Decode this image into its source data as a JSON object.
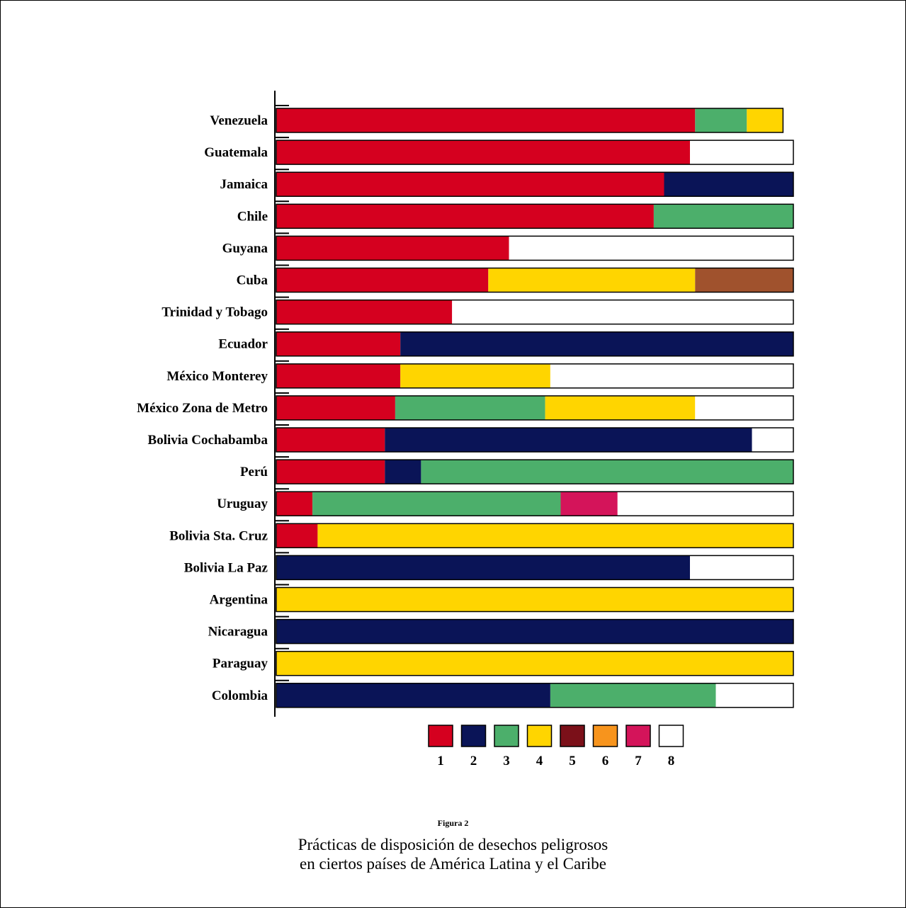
{
  "chart_data": {
    "type": "bar",
    "orientation": "horizontal",
    "stacked": true,
    "title": "",
    "xlabel": "",
    "ylabel": "",
    "xlim": [
      0,
      100
    ],
    "categories": [
      "Venezuela",
      "Guatemala",
      "Jamaica",
      "Chile",
      "Guyana",
      "Cuba",
      "Trinidad y Tobago",
      "Ecuador",
      "México Monterey",
      "México Zona de Metro",
      "Bolivia Cochabamba",
      "Perú",
      "Uruguay",
      "Bolivia Sta. Cruz",
      "Bolivia La Paz",
      "Argentina",
      "Nicaragua",
      "Paraguay",
      "Colombia"
    ],
    "series": [
      {
        "name": "1",
        "color": "#d5001f",
        "values": [
          81,
          80,
          75,
          73,
          45,
          41,
          34,
          24,
          24,
          23,
          21,
          21,
          7,
          8,
          0,
          0,
          0,
          0,
          0
        ]
      },
      {
        "name": "2",
        "color": "#0a1457",
        "values": [
          0,
          0,
          25,
          0,
          0,
          0,
          0,
          76,
          0,
          0,
          71,
          7,
          0,
          0,
          80,
          0,
          100,
          0,
          53
        ]
      },
      {
        "name": "3",
        "color": "#4caf6b",
        "values": [
          10,
          0,
          0,
          27,
          0,
          0,
          0,
          0,
          0,
          29,
          0,
          72,
          48,
          0,
          0,
          0,
          0,
          0,
          32
        ]
      },
      {
        "name": "4",
        "color": "#ffd500",
        "values": [
          7,
          0,
          0,
          0,
          0,
          40,
          0,
          0,
          29,
          29,
          0,
          0,
          0,
          92,
          0,
          100,
          0,
          100,
          0
        ]
      },
      {
        "name": "5",
        "color": "#a0522d",
        "values": [
          0,
          0,
          0,
          0,
          0,
          19,
          0,
          0,
          0,
          0,
          0,
          0,
          0,
          0,
          0,
          0,
          0,
          0,
          0
        ]
      },
      {
        "name": "6",
        "color": "#f7941d",
        "values": [
          0,
          0,
          0,
          0,
          0,
          0,
          0,
          0,
          0,
          0,
          0,
          0,
          0,
          0,
          0,
          0,
          0,
          0,
          0
        ]
      },
      {
        "name": "7",
        "color": "#d4145a",
        "values": [
          0,
          0,
          0,
          0,
          0,
          0,
          0,
          0,
          0,
          0,
          0,
          0,
          11,
          0,
          0,
          0,
          0,
          0,
          0
        ]
      },
      {
        "name": "8",
        "color": "#ffffff",
        "values": [
          0,
          20,
          0,
          0,
          55,
          0,
          66,
          0,
          47,
          19,
          8,
          0,
          34,
          0,
          20,
          0,
          0,
          0,
          15
        ]
      }
    ],
    "legend": {
      "placement": "bottom",
      "labels": [
        "1",
        "2",
        "3",
        "4",
        "5",
        "6",
        "7",
        "8"
      ],
      "colors": [
        "#d5001f",
        "#0a1457",
        "#4caf6b",
        "#ffd500",
        "#7b1019",
        "#f7941d",
        "#d4145a",
        "#ffffff"
      ]
    }
  },
  "caption": {
    "figure_number": "Figura 2",
    "title_line1": "Prácticas de disposición de desechos peligrosos",
    "title_line2": "en ciertos países de América Latina y el Caribe"
  }
}
